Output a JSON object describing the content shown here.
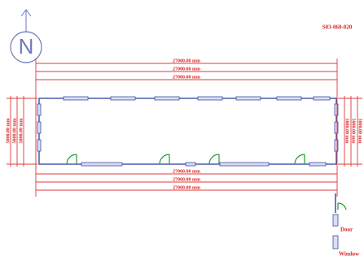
{
  "drawing_code": "S03-060-020",
  "north": "N",
  "dimensions": {
    "top": [
      "27000.00 mm",
      "27000.00 mm",
      "27000.00 mm"
    ],
    "bottom": [
      "27000.00 mm",
      "27000.00 mm",
      "27000.00 mm"
    ],
    "left": [
      "5000.00 mm",
      "5000.00 mm",
      "5000.00 mm"
    ],
    "right": [
      "5000.00 mm",
      "5000.00 mm",
      "5000.00 mm"
    ]
  },
  "legend": {
    "door": "Door",
    "window": "Window"
  }
}
